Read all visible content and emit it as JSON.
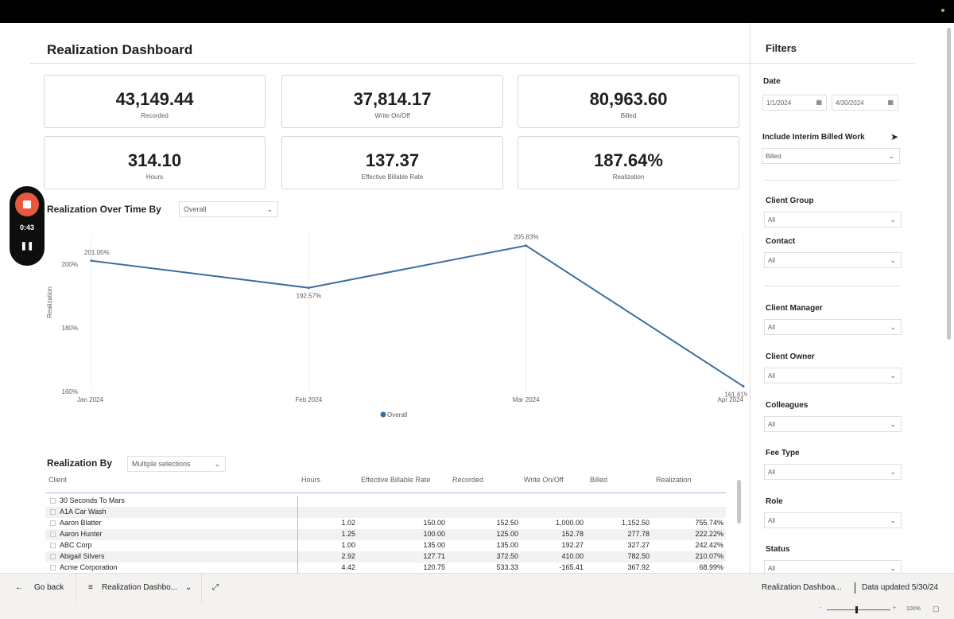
{
  "dashboard": {
    "title": "Realization Dashboard"
  },
  "kpis": [
    {
      "value": "43,149.44",
      "label": "Recorded"
    },
    {
      "value": "37,814.17",
      "label": "Write On/Off"
    },
    {
      "value": "80,963.60",
      "label": "Billed"
    },
    {
      "value": "314.10",
      "label": "Hours"
    },
    {
      "value": "137.37",
      "label": "Effective Billable Rate"
    },
    {
      "value": "187.64%",
      "label": "Realization"
    }
  ],
  "over_time": {
    "label": "Realization Over Time By",
    "dropdown": "Overall"
  },
  "chart_data": {
    "type": "line",
    "categories": [
      "Jan 2024",
      "Feb 2024",
      "Mar 2024",
      "Apr 2024"
    ],
    "series": [
      {
        "name": "Overall",
        "values": [
          201.05,
          192.57,
          205.83,
          161.61
        ],
        "color": "#3c6e9f"
      }
    ],
    "data_labels": [
      "201.05%",
      "192.57%",
      "205.83%",
      "161.61%"
    ],
    "ylabel": "Realization",
    "yticks": [
      "160%",
      "180%",
      "200%"
    ],
    "ylim": [
      160,
      210
    ],
    "legend_position": "bottom-center"
  },
  "realization_by": {
    "label": "Realization By",
    "dropdown": "Multiple selections",
    "columns": [
      "Client",
      "Hours",
      "Effective Billable Rate",
      "Recorded",
      "Write On/Off",
      "Billed",
      "Realization"
    ],
    "rows": [
      {
        "client": "30 Seconds To Mars",
        "hours": "",
        "rate": "",
        "recorded": "",
        "write": "",
        "billed": "",
        "realization": ""
      },
      {
        "client": "A1A Car Wash",
        "hours": "",
        "rate": "",
        "recorded": "",
        "write": "",
        "billed": "",
        "realization": ""
      },
      {
        "client": "Aaron Blatter",
        "hours": "1.02",
        "rate": "150.00",
        "recorded": "152.50",
        "write": "1,000.00",
        "billed": "1,152.50",
        "realization": "755.74%"
      },
      {
        "client": "Aaron Hunter",
        "hours": "1.25",
        "rate": "100.00",
        "recorded": "125.00",
        "write": "152.78",
        "billed": "277.78",
        "realization": "222.22%"
      },
      {
        "client": "ABC Corp",
        "hours": "1.00",
        "rate": "135.00",
        "recorded": "135.00",
        "write": "192.27",
        "billed": "327.27",
        "realization": "242.42%"
      },
      {
        "client": "Abigail Silvers",
        "hours": "2.92",
        "rate": "127.71",
        "recorded": "372.50",
        "write": "410.00",
        "billed": "782.50",
        "realization": "210.07%"
      },
      {
        "client": "Acme Corporation",
        "hours": "4.42",
        "rate": "120.75",
        "recorded": "533.33",
        "write": "-165.41",
        "billed": "367.92",
        "realization": "68.99%"
      }
    ]
  },
  "filters": {
    "title": "Filters",
    "date_label": "Date",
    "date_start": "1/1/2024",
    "date_end": "4/30/2024",
    "interim_label": "Include Interim Billed Work",
    "interim_value": "Billed",
    "items": [
      {
        "label": "Client Group",
        "value": "All"
      },
      {
        "label": "Contact",
        "value": "All"
      },
      {
        "label": "Client Manager",
        "value": "All"
      },
      {
        "label": "Client Owner",
        "value": "All"
      },
      {
        "label": "Colleagues",
        "value": "All"
      },
      {
        "label": "Fee Type",
        "value": "All"
      },
      {
        "label": "Role",
        "value": "All"
      },
      {
        "label": "Status",
        "value": "All"
      }
    ]
  },
  "recorder": {
    "time": "0:43"
  },
  "bottom": {
    "go_back": "Go back",
    "page_tab": "Realization Dashbo...",
    "report_name": "Realization Dashboa...",
    "data_updated": "Data updated 5/30/24"
  },
  "status": {
    "zoom": "100%"
  }
}
